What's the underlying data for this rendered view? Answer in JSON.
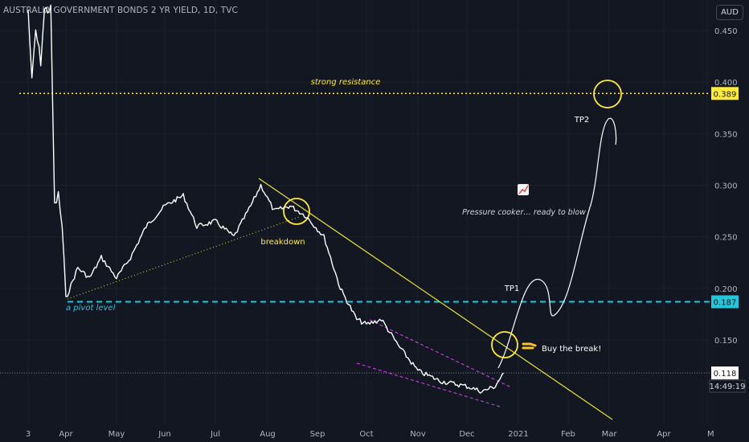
{
  "header": {
    "symbol_title": "AUSTRALIA GOVERNMENT BONDS 2 YR YIELD, 1D, TVC",
    "currency": "AUD"
  },
  "colors": {
    "background": "#131722",
    "price_line": "#ffffff",
    "resistance": "#ffeb3b",
    "pivot": "#26c6da",
    "channel": "#e040fb",
    "trendline": "#e6e13a",
    "axis_text": "#b2b5be"
  },
  "chart_data": {
    "type": "line",
    "title": "AUSTRALIA GOVERNMENT BONDS 2 YR YIELD, 1D, TVC",
    "y_ticks": [
      "0.450",
      "0.400",
      "0.350",
      "0.300",
      "0.250",
      "0.200",
      "0.150"
    ],
    "x_ticks": [
      "3",
      "Apr",
      "May",
      "Jun",
      "Jul",
      "Aug",
      "Sep",
      "Oct",
      "Nov",
      "Dec",
      "2021",
      "Feb",
      "Mar",
      "Apr",
      "M"
    ],
    "ylim": [
      0.06,
      0.47
    ],
    "grid": true,
    "series": [
      {
        "values_by_month": [
          {
            "x": "2020-03-02",
            "y": 0.47
          },
          {
            "x": "2020-03-05",
            "y": 0.4
          },
          {
            "x": "2020-03-08",
            "y": 0.45
          },
          {
            "x": "2020-03-12",
            "y": 0.42
          },
          {
            "x": "2020-03-15",
            "y": 0.47
          },
          {
            "x": "2020-03-20",
            "y": 0.47
          },
          {
            "x": "2020-03-23",
            "y": 0.28
          },
          {
            "x": "2020-03-26",
            "y": 0.29
          },
          {
            "x": "2020-03-29",
            "y": 0.26
          },
          {
            "x": "2020-04-01",
            "y": 0.19
          },
          {
            "x": "2020-04-08",
            "y": 0.22
          },
          {
            "x": "2020-04-15",
            "y": 0.21
          },
          {
            "x": "2020-04-22",
            "y": 0.23
          },
          {
            "x": "2020-05-01",
            "y": 0.21
          },
          {
            "x": "2020-05-10",
            "y": 0.23
          },
          {
            "x": "2020-05-20",
            "y": 0.26
          },
          {
            "x": "2020-06-01",
            "y": 0.28
          },
          {
            "x": "2020-06-12",
            "y": 0.29
          },
          {
            "x": "2020-06-20",
            "y": 0.26
          },
          {
            "x": "2020-07-01",
            "y": 0.265
          },
          {
            "x": "2020-07-12",
            "y": 0.25
          },
          {
            "x": "2020-07-22",
            "y": 0.28
          },
          {
            "x": "2020-07-28",
            "y": 0.3
          },
          {
            "x": "2020-08-05",
            "y": 0.275
          },
          {
            "x": "2020-08-15",
            "y": 0.28
          },
          {
            "x": "2020-08-25",
            "y": 0.27
          },
          {
            "x": "2020-09-05",
            "y": 0.25
          },
          {
            "x": "2020-09-15",
            "y": 0.2
          },
          {
            "x": "2020-09-25",
            "y": 0.17
          },
          {
            "x": "2020-10-01",
            "y": 0.165
          },
          {
            "x": "2020-10-10",
            "y": 0.17
          },
          {
            "x": "2020-10-20",
            "y": 0.145
          },
          {
            "x": "2020-11-01",
            "y": 0.12
          },
          {
            "x": "2020-11-15",
            "y": 0.11
          },
          {
            "x": "2020-12-01",
            "y": 0.105
          },
          {
            "x": "2020-12-10",
            "y": 0.1
          },
          {
            "x": "2020-12-18",
            "y": 0.105
          },
          {
            "x": "2020-12-23",
            "y": 0.118
          }
        ]
      }
    ],
    "levels": [
      {
        "label": "0.389",
        "value": 0.389,
        "text": "strong resistance"
      },
      {
        "label": "0.187",
        "value": 0.187,
        "text": "a pivot level"
      },
      {
        "label": "0.118",
        "value": 0.118
      }
    ],
    "annotations": [
      "breakdown",
      "Pressure cooker… ready to blow",
      "Buy the break!",
      "TP1",
      "TP2"
    ],
    "countdown": "14:49:19"
  }
}
